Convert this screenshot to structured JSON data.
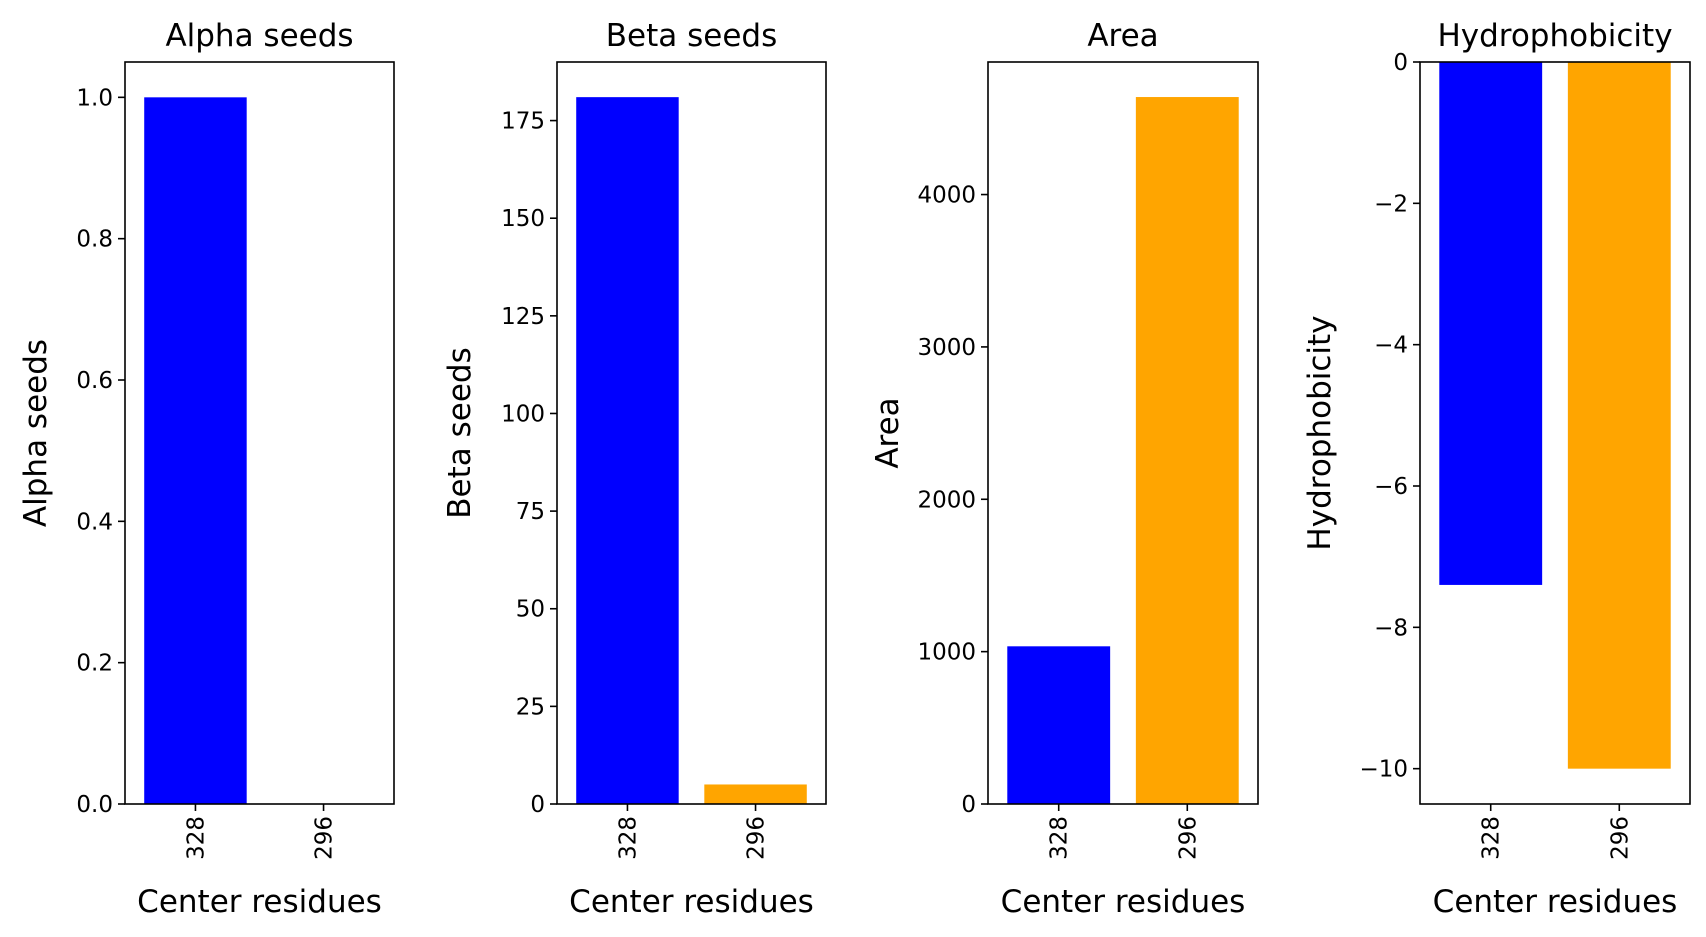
{
  "chart_data": [
    {
      "type": "bar",
      "title": "Alpha seeds",
      "xlabel": "Center residues",
      "ylabel": "Alpha seeds",
      "categories": [
        "328",
        "296"
      ],
      "values": [
        1,
        0
      ],
      "colors": [
        "#0000ff",
        "#ffa500"
      ],
      "ylim": [
        0,
        1.05
      ],
      "yticks": [
        0.0,
        0.2,
        0.4,
        0.6,
        0.8,
        1.0
      ],
      "ytick_labels": [
        "0.0",
        "0.2",
        "0.4",
        "0.6",
        "0.8",
        "1.0"
      ]
    },
    {
      "type": "bar",
      "title": "Beta seeds",
      "xlabel": "Center residues",
      "ylabel": "Beta seeds",
      "categories": [
        "328",
        "296"
      ],
      "values": [
        181,
        5
      ],
      "colors": [
        "#0000ff",
        "#ffa500"
      ],
      "ylim": [
        0,
        190
      ],
      "yticks": [
        0,
        25,
        50,
        75,
        100,
        125,
        150,
        175
      ],
      "ytick_labels": [
        "0",
        "25",
        "50",
        "75",
        "100",
        "125",
        "150",
        "175"
      ]
    },
    {
      "type": "bar",
      "title": "Area",
      "xlabel": "Center residues",
      "ylabel": "Area",
      "categories": [
        "328",
        "296"
      ],
      "values": [
        1035,
        4640
      ],
      "colors": [
        "#0000ff",
        "#ffa500"
      ],
      "ylim": [
        0,
        4870
      ],
      "yticks": [
        0,
        1000,
        2000,
        3000,
        4000
      ],
      "ytick_labels": [
        "0",
        "1000",
        "2000",
        "3000",
        "4000"
      ]
    },
    {
      "type": "bar",
      "title": "Hydrophobicity",
      "xlabel": "Center residues",
      "ylabel": "Hydrophobicity",
      "categories": [
        "328",
        "296"
      ],
      "values": [
        -7.4,
        -10
      ],
      "colors": [
        "#0000ff",
        "#ffa500"
      ],
      "ylim": [
        -10.5,
        0
      ],
      "yticks": [
        0,
        -2,
        -4,
        -6,
        -8,
        -10
      ],
      "ytick_labels": [
        "0",
        "−2",
        "−4",
        "−6",
        "−8",
        "−10"
      ]
    }
  ]
}
